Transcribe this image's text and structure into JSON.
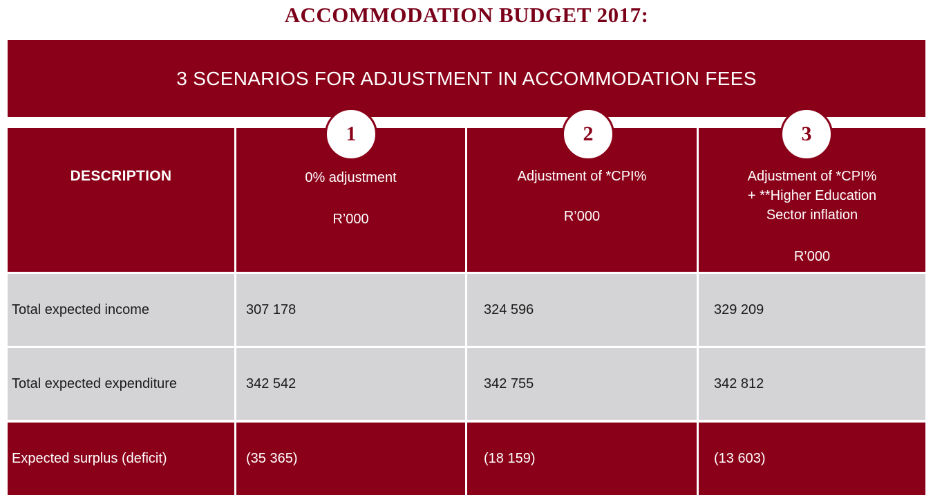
{
  "title": "ACCOMMODATION BUDGET 2017:",
  "banner": "3 SCENARIOS FOR ADJUSTMENT IN ACCOMMODATION FEES",
  "header": {
    "description": "DESCRIPTION",
    "scenarios": [
      {
        "number": "1",
        "lines": [
          "0% adjustment"
        ],
        "unit": "R’000"
      },
      {
        "number": "2",
        "lines": [
          "Adjustment of *CPI%"
        ],
        "unit": "R’000"
      },
      {
        "number": "3",
        "lines": [
          "Adjustment of *CPI%",
          "+ **Higher Education",
          "Sector inflation"
        ],
        "unit": "R’000"
      }
    ]
  },
  "rows": [
    {
      "label": "Total expected income",
      "values": [
        "307 178",
        "324 596",
        "329 209"
      ]
    },
    {
      "label": "Total expected expenditure",
      "values": [
        "342 542",
        "342 755",
        "342 812"
      ]
    },
    {
      "label": "Expected surplus (deficit)",
      "values": [
        "(35 365)",
        "(18 159)",
        "(13 603)"
      ]
    }
  ],
  "colors": {
    "maroon": "#8a0018",
    "grey": "#d4d4d6",
    "white": "#ffffff"
  }
}
